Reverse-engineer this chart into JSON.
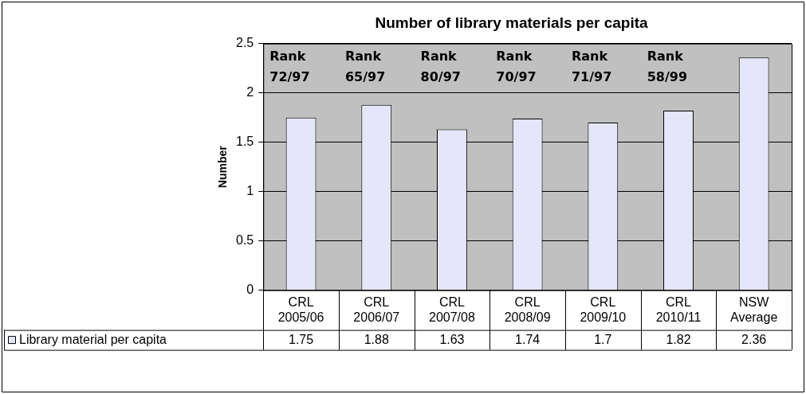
{
  "chart_data": {
    "type": "bar",
    "title": "Number of library materials per capita",
    "ylabel": "Number",
    "categories": [
      "CRL 2005/06",
      "CRL 2006/07",
      "CRL 2007/08",
      "CRL 2008/09",
      "CRL 2009/10",
      "CRL 2010/11",
      "NSW Average"
    ],
    "series": [
      {
        "name": "Library material per capita",
        "color": "#e6e6fa",
        "values": [
          1.75,
          1.88,
          1.63,
          1.74,
          1.7,
          1.82,
          2.36
        ]
      }
    ],
    "ylim": [
      0,
      2.5
    ],
    "yticks": [
      0,
      0.5,
      1,
      1.5,
      2,
      2.5
    ],
    "grid": "y",
    "legend": "bottom",
    "data_labels": true,
    "annotations": [
      "Rank 72/97",
      "Rank 65/97",
      "Rank 80/97",
      "Rank 70/97",
      "Rank 71/97",
      "Rank 58/99"
    ]
  }
}
